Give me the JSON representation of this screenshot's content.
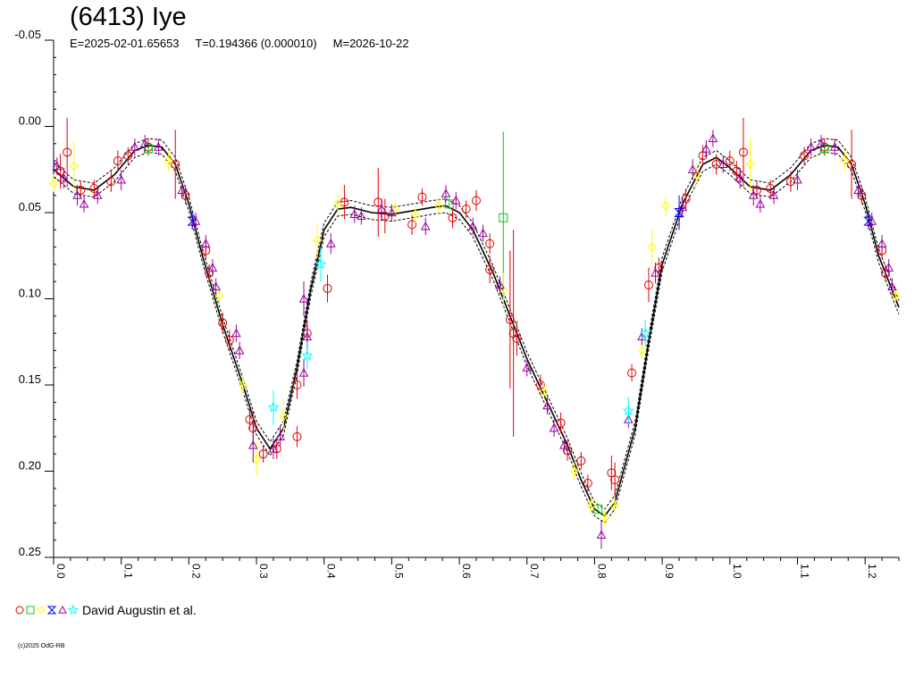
{
  "header": {
    "title": "(6413) Iye",
    "ephemeris": "E=2025-02-01.65653     T=0.194366 (0.000010)     M=2026-10-22"
  },
  "legend": {
    "label": "David Augustin et al.",
    "symbols": [
      "circle",
      "square",
      "diamond",
      "hourglass",
      "triangle",
      "star"
    ],
    "colors": [
      "#e00000",
      "#00d000",
      "#ffff00",
      "#0000ff",
      "#990099",
      "#00ffff"
    ]
  },
  "copyright": "(c)2025 OdG-RB",
  "chart_data": {
    "type": "scatter",
    "title": "(6413) Iye",
    "xlabel": "",
    "ylabel": "",
    "xlim": [
      0.0,
      1.25
    ],
    "ylim": [
      0.25,
      -0.05
    ],
    "y_inverted": true,
    "xticks": [
      "0.0",
      "0.1",
      "0.2",
      "0.3",
      "0.4",
      "0.5",
      "0.6",
      "0.7",
      "0.8",
      "0.9",
      "1.0",
      "1.1",
      "1.2"
    ],
    "yticks": [
      "-0.05",
      "0.00",
      "0.05",
      "0.10",
      "0.15",
      "0.20",
      "0.25"
    ],
    "grid": false,
    "fit_curve": {
      "phase": [
        0.0,
        0.03,
        0.06,
        0.09,
        0.12,
        0.14,
        0.16,
        0.18,
        0.2,
        0.22,
        0.25,
        0.28,
        0.3,
        0.32,
        0.34,
        0.36,
        0.38,
        0.4,
        0.42,
        0.44,
        0.47,
        0.5,
        0.53,
        0.56,
        0.58,
        0.6,
        0.62,
        0.65,
        0.68,
        0.7,
        0.73,
        0.76,
        0.78,
        0.8,
        0.815,
        0.83,
        0.86,
        0.88,
        0.9,
        0.93,
        0.96,
        0.98,
        1.0,
        1.03,
        1.06,
        1.09,
        1.12,
        1.14,
        1.16,
        1.18,
        1.2,
        1.22,
        1.25
      ],
      "mag": [
        0.025,
        0.035,
        0.037,
        0.028,
        0.014,
        0.011,
        0.012,
        0.022,
        0.045,
        0.075,
        0.115,
        0.15,
        0.175,
        0.187,
        0.175,
        0.14,
        0.095,
        0.06,
        0.048,
        0.047,
        0.05,
        0.051,
        0.049,
        0.047,
        0.046,
        0.05,
        0.06,
        0.085,
        0.115,
        0.135,
        0.16,
        0.185,
        0.205,
        0.222,
        0.226,
        0.218,
        0.175,
        0.125,
        0.08,
        0.045,
        0.022,
        0.018,
        0.024,
        0.035,
        0.037,
        0.028,
        0.014,
        0.011,
        0.012,
        0.022,
        0.045,
        0.075,
        0.105
      ],
      "envelope": 0.004
    },
    "series": [
      {
        "name": "David Augustin et al.",
        "marker": "circle",
        "color": "#e00000",
        "points": [
          [
            0.01,
            0.026,
            0.01
          ],
          [
            0.02,
            0.015,
            0.02
          ],
          [
            0.04,
            0.037,
            0.005
          ],
          [
            0.06,
            0.036,
            0.005
          ],
          [
            0.085,
            0.032,
            0.006
          ],
          [
            0.095,
            0.02,
            0.006
          ],
          [
            0.11,
            0.017,
            0.005
          ],
          [
            0.14,
            0.012,
            0.005
          ],
          [
            0.18,
            0.022,
            0.02
          ],
          [
            0.195,
            0.04,
            0.005
          ],
          [
            0.225,
            0.072,
            0.005
          ],
          [
            0.23,
            0.085,
            0.005
          ],
          [
            0.25,
            0.114,
            0.006
          ],
          [
            0.26,
            0.124,
            0.006
          ],
          [
            0.29,
            0.17,
            0.006
          ],
          [
            0.295,
            0.175,
            0.01
          ],
          [
            0.31,
            0.19,
            0.005
          ],
          [
            0.33,
            0.187,
            0.006
          ],
          [
            0.36,
            0.18,
            0.006
          ],
          [
            0.36,
            0.15,
            0.008
          ],
          [
            0.375,
            0.12,
            0.008
          ],
          [
            0.405,
            0.094,
            0.008
          ],
          [
            0.43,
            0.044,
            0.01
          ],
          [
            0.48,
            0.044,
            0.02
          ],
          [
            0.49,
            0.052,
            0.01
          ],
          [
            0.53,
            0.057,
            0.006
          ],
          [
            0.545,
            0.041,
            0.005
          ],
          [
            0.59,
            0.053,
            0.006
          ],
          [
            0.61,
            0.048,
            0.005
          ],
          [
            0.625,
            0.043,
            0.006
          ],
          [
            0.645,
            0.068,
            0.006
          ],
          [
            0.645,
            0.083,
            0.008
          ],
          [
            0.675,
            0.112,
            0.04
          ],
          [
            0.68,
            0.12,
            0.06
          ],
          [
            0.685,
            0.123,
            0.01
          ],
          [
            0.72,
            0.15,
            0.006
          ],
          [
            0.75,
            0.172,
            0.006
          ],
          [
            0.76,
            0.188,
            0.006
          ],
          [
            0.78,
            0.194,
            0.005
          ],
          [
            0.79,
            0.207,
            0.005
          ],
          [
            0.825,
            0.201,
            0.01
          ],
          [
            0.83,
            0.205,
            0.01
          ],
          [
            0.855,
            0.143,
            0.005
          ],
          [
            0.88,
            0.092,
            0.01
          ],
          [
            0.895,
            0.082,
            0.006
          ],
          [
            0.935,
            0.042,
            0.006
          ],
          [
            0.96,
            0.017,
            0.006
          ],
          [
            0.98,
            0.022,
            0.006
          ],
          [
            1.0,
            0.02,
            0.006
          ],
          [
            1.01,
            0.026,
            0.006
          ],
          [
            1.02,
            0.015,
            0.02
          ],
          [
            1.04,
            0.037,
            0.005
          ],
          [
            1.06,
            0.036,
            0.005
          ],
          [
            1.09,
            0.032,
            0.006
          ],
          [
            1.11,
            0.017,
            0.005
          ],
          [
            1.14,
            0.012,
            0.005
          ],
          [
            1.18,
            0.022,
            0.02
          ],
          [
            1.195,
            0.04,
            0.005
          ],
          [
            1.225,
            0.072,
            0.005
          ],
          [
            1.23,
            0.085,
            0.005
          ]
        ]
      },
      {
        "name": "David Augustin et al.",
        "marker": "square",
        "color": "#00d000",
        "points": [
          [
            0.14,
            0.013,
            0.003
          ],
          [
            0.585,
            0.045,
            0.003
          ],
          [
            0.665,
            0.053,
            0.05
          ],
          [
            0.805,
            0.222,
            0.003
          ],
          [
            1.14,
            0.013,
            0.003
          ]
        ]
      },
      {
        "name": "David Augustin et al.",
        "marker": "diamond",
        "color": "#ffff00",
        "points": [
          [
            0.0,
            0.033,
            0.005
          ],
          [
            0.03,
            0.023,
            0.015
          ],
          [
            0.17,
            0.02,
            0.006
          ],
          [
            0.245,
            0.098,
            0.005
          ],
          [
            0.28,
            0.15,
            0.005
          ],
          [
            0.3,
            0.193,
            0.01
          ],
          [
            0.34,
            0.168,
            0.01
          ],
          [
            0.39,
            0.066,
            0.01
          ],
          [
            0.42,
            0.045,
            0.006
          ],
          [
            0.505,
            0.048,
            0.005
          ],
          [
            0.535,
            0.051,
            0.005
          ],
          [
            0.57,
            0.046,
            0.005
          ],
          [
            0.665,
            0.095,
            0.01
          ],
          [
            0.725,
            0.154,
            0.005
          ],
          [
            0.77,
            0.2,
            0.005
          ],
          [
            0.795,
            0.22,
            0.005
          ],
          [
            0.815,
            0.227,
            0.005
          ],
          [
            0.83,
            0.22,
            0.005
          ],
          [
            0.87,
            0.13,
            0.005
          ],
          [
            0.885,
            0.07,
            0.01
          ],
          [
            0.905,
            0.046,
            0.006
          ],
          [
            0.95,
            0.028,
            0.006
          ],
          [
            1.03,
            0.022,
            0.015
          ],
          [
            1.17,
            0.02,
            0.006
          ],
          [
            1.245,
            0.098,
            0.005
          ]
        ]
      },
      {
        "name": "David Augustin et al.",
        "marker": "hourglass",
        "color": "#0000ff",
        "points": [
          [
            0.205,
            0.055,
            0.005
          ],
          [
            0.925,
            0.05,
            0.01
          ],
          [
            1.205,
            0.055,
            0.005
          ]
        ]
      },
      {
        "name": "David Augustin et al.",
        "marker": "triangle",
        "color": "#990099",
        "points": [
          [
            0.005,
            0.023,
            0.005
          ],
          [
            0.015,
            0.03,
            0.006
          ],
          [
            0.035,
            0.04,
            0.006
          ],
          [
            0.045,
            0.045,
            0.005
          ],
          [
            0.065,
            0.04,
            0.005
          ],
          [
            0.1,
            0.031,
            0.006
          ],
          [
            0.12,
            0.012,
            0.005
          ],
          [
            0.135,
            0.01,
            0.005
          ],
          [
            0.155,
            0.012,
            0.005
          ],
          [
            0.19,
            0.037,
            0.005
          ],
          [
            0.21,
            0.055,
            0.005
          ],
          [
            0.225,
            0.068,
            0.005
          ],
          [
            0.235,
            0.082,
            0.005
          ],
          [
            0.24,
            0.093,
            0.005
          ],
          [
            0.27,
            0.12,
            0.005
          ],
          [
            0.275,
            0.13,
            0.005
          ],
          [
            0.295,
            0.185,
            0.01
          ],
          [
            0.325,
            0.187,
            0.006
          ],
          [
            0.335,
            0.18,
            0.006
          ],
          [
            0.37,
            0.1,
            0.01
          ],
          [
            0.375,
            0.122,
            0.008
          ],
          [
            0.37,
            0.143,
            0.008
          ],
          [
            0.41,
            0.068,
            0.006
          ],
          [
            0.445,
            0.051,
            0.005
          ],
          [
            0.455,
            0.052,
            0.005
          ],
          [
            0.485,
            0.048,
            0.006
          ],
          [
            0.5,
            0.05,
            0.005
          ],
          [
            0.55,
            0.058,
            0.005
          ],
          [
            0.58,
            0.039,
            0.005
          ],
          [
            0.595,
            0.043,
            0.005
          ],
          [
            0.62,
            0.058,
            0.005
          ],
          [
            0.635,
            0.062,
            0.005
          ],
          [
            0.66,
            0.092,
            0.005
          ],
          [
            0.7,
            0.14,
            0.005
          ],
          [
            0.73,
            0.162,
            0.005
          ],
          [
            0.74,
            0.175,
            0.005
          ],
          [
            0.755,
            0.185,
            0.005
          ],
          [
            0.81,
            0.237,
            0.008
          ],
          [
            0.85,
            0.17,
            0.005
          ],
          [
            0.87,
            0.122,
            0.005
          ],
          [
            0.89,
            0.085,
            0.006
          ],
          [
            0.93,
            0.047,
            0.006
          ],
          [
            0.945,
            0.025,
            0.006
          ],
          [
            0.965,
            0.013,
            0.005
          ],
          [
            0.975,
            0.007,
            0.005
          ],
          [
            0.99,
            0.022,
            0.005
          ],
          [
            1.015,
            0.03,
            0.006
          ],
          [
            1.035,
            0.04,
            0.006
          ],
          [
            1.045,
            0.045,
            0.005
          ],
          [
            1.065,
            0.04,
            0.005
          ],
          [
            1.1,
            0.031,
            0.006
          ],
          [
            1.12,
            0.012,
            0.005
          ],
          [
            1.135,
            0.01,
            0.005
          ],
          [
            1.155,
            0.012,
            0.005
          ],
          [
            1.19,
            0.037,
            0.005
          ],
          [
            1.21,
            0.055,
            0.005
          ],
          [
            1.225,
            0.068,
            0.005
          ],
          [
            1.235,
            0.082,
            0.005
          ],
          [
            1.24,
            0.093,
            0.005
          ]
        ]
      },
      {
        "name": "David Augustin et al.",
        "marker": "star",
        "color": "#00ffff",
        "points": [
          [
            0.325,
            0.163,
            0.01
          ],
          [
            0.375,
            0.133,
            0.008
          ],
          [
            0.395,
            0.08,
            0.01
          ],
          [
            0.85,
            0.165,
            0.008
          ],
          [
            0.875,
            0.12,
            0.008
          ]
        ]
      }
    ]
  }
}
